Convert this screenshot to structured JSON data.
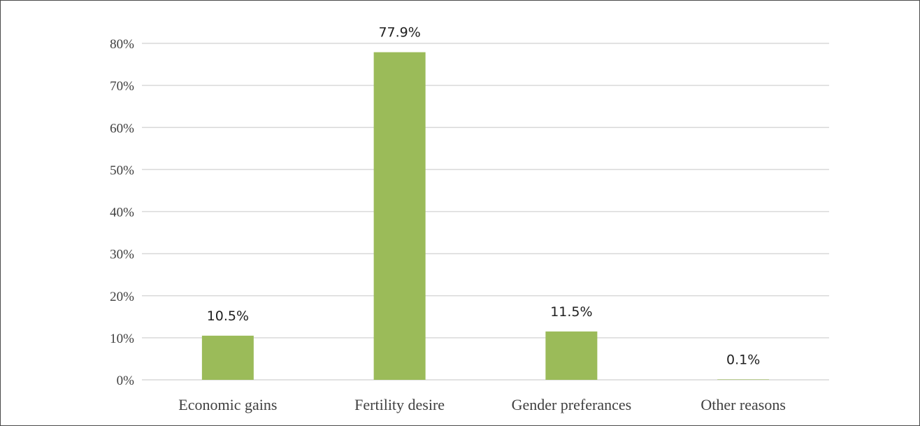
{
  "chart_data": {
    "type": "bar",
    "categories": [
      "Economic gains",
      "Fertility desire",
      "Gender preferances",
      "Other reasons"
    ],
    "values": [
      10.5,
      77.9,
      11.5,
      0.1
    ],
    "data_labels": [
      "10.5%",
      "77.9%",
      "11.5%",
      "0.1%"
    ],
    "y_ticks": [
      0,
      10,
      20,
      30,
      40,
      50,
      60,
      70,
      80
    ],
    "y_tick_labels": [
      "0%",
      "10%",
      "20%",
      "30%",
      "40%",
      "50%",
      "60%",
      "70%",
      "80%"
    ],
    "ylim": [
      0,
      80
    ],
    "title": "",
    "xlabel": "",
    "ylabel": "",
    "grid": true,
    "legend": false,
    "bar_color": "#9bbb59",
    "grid_color": "#d9d9d9"
  }
}
